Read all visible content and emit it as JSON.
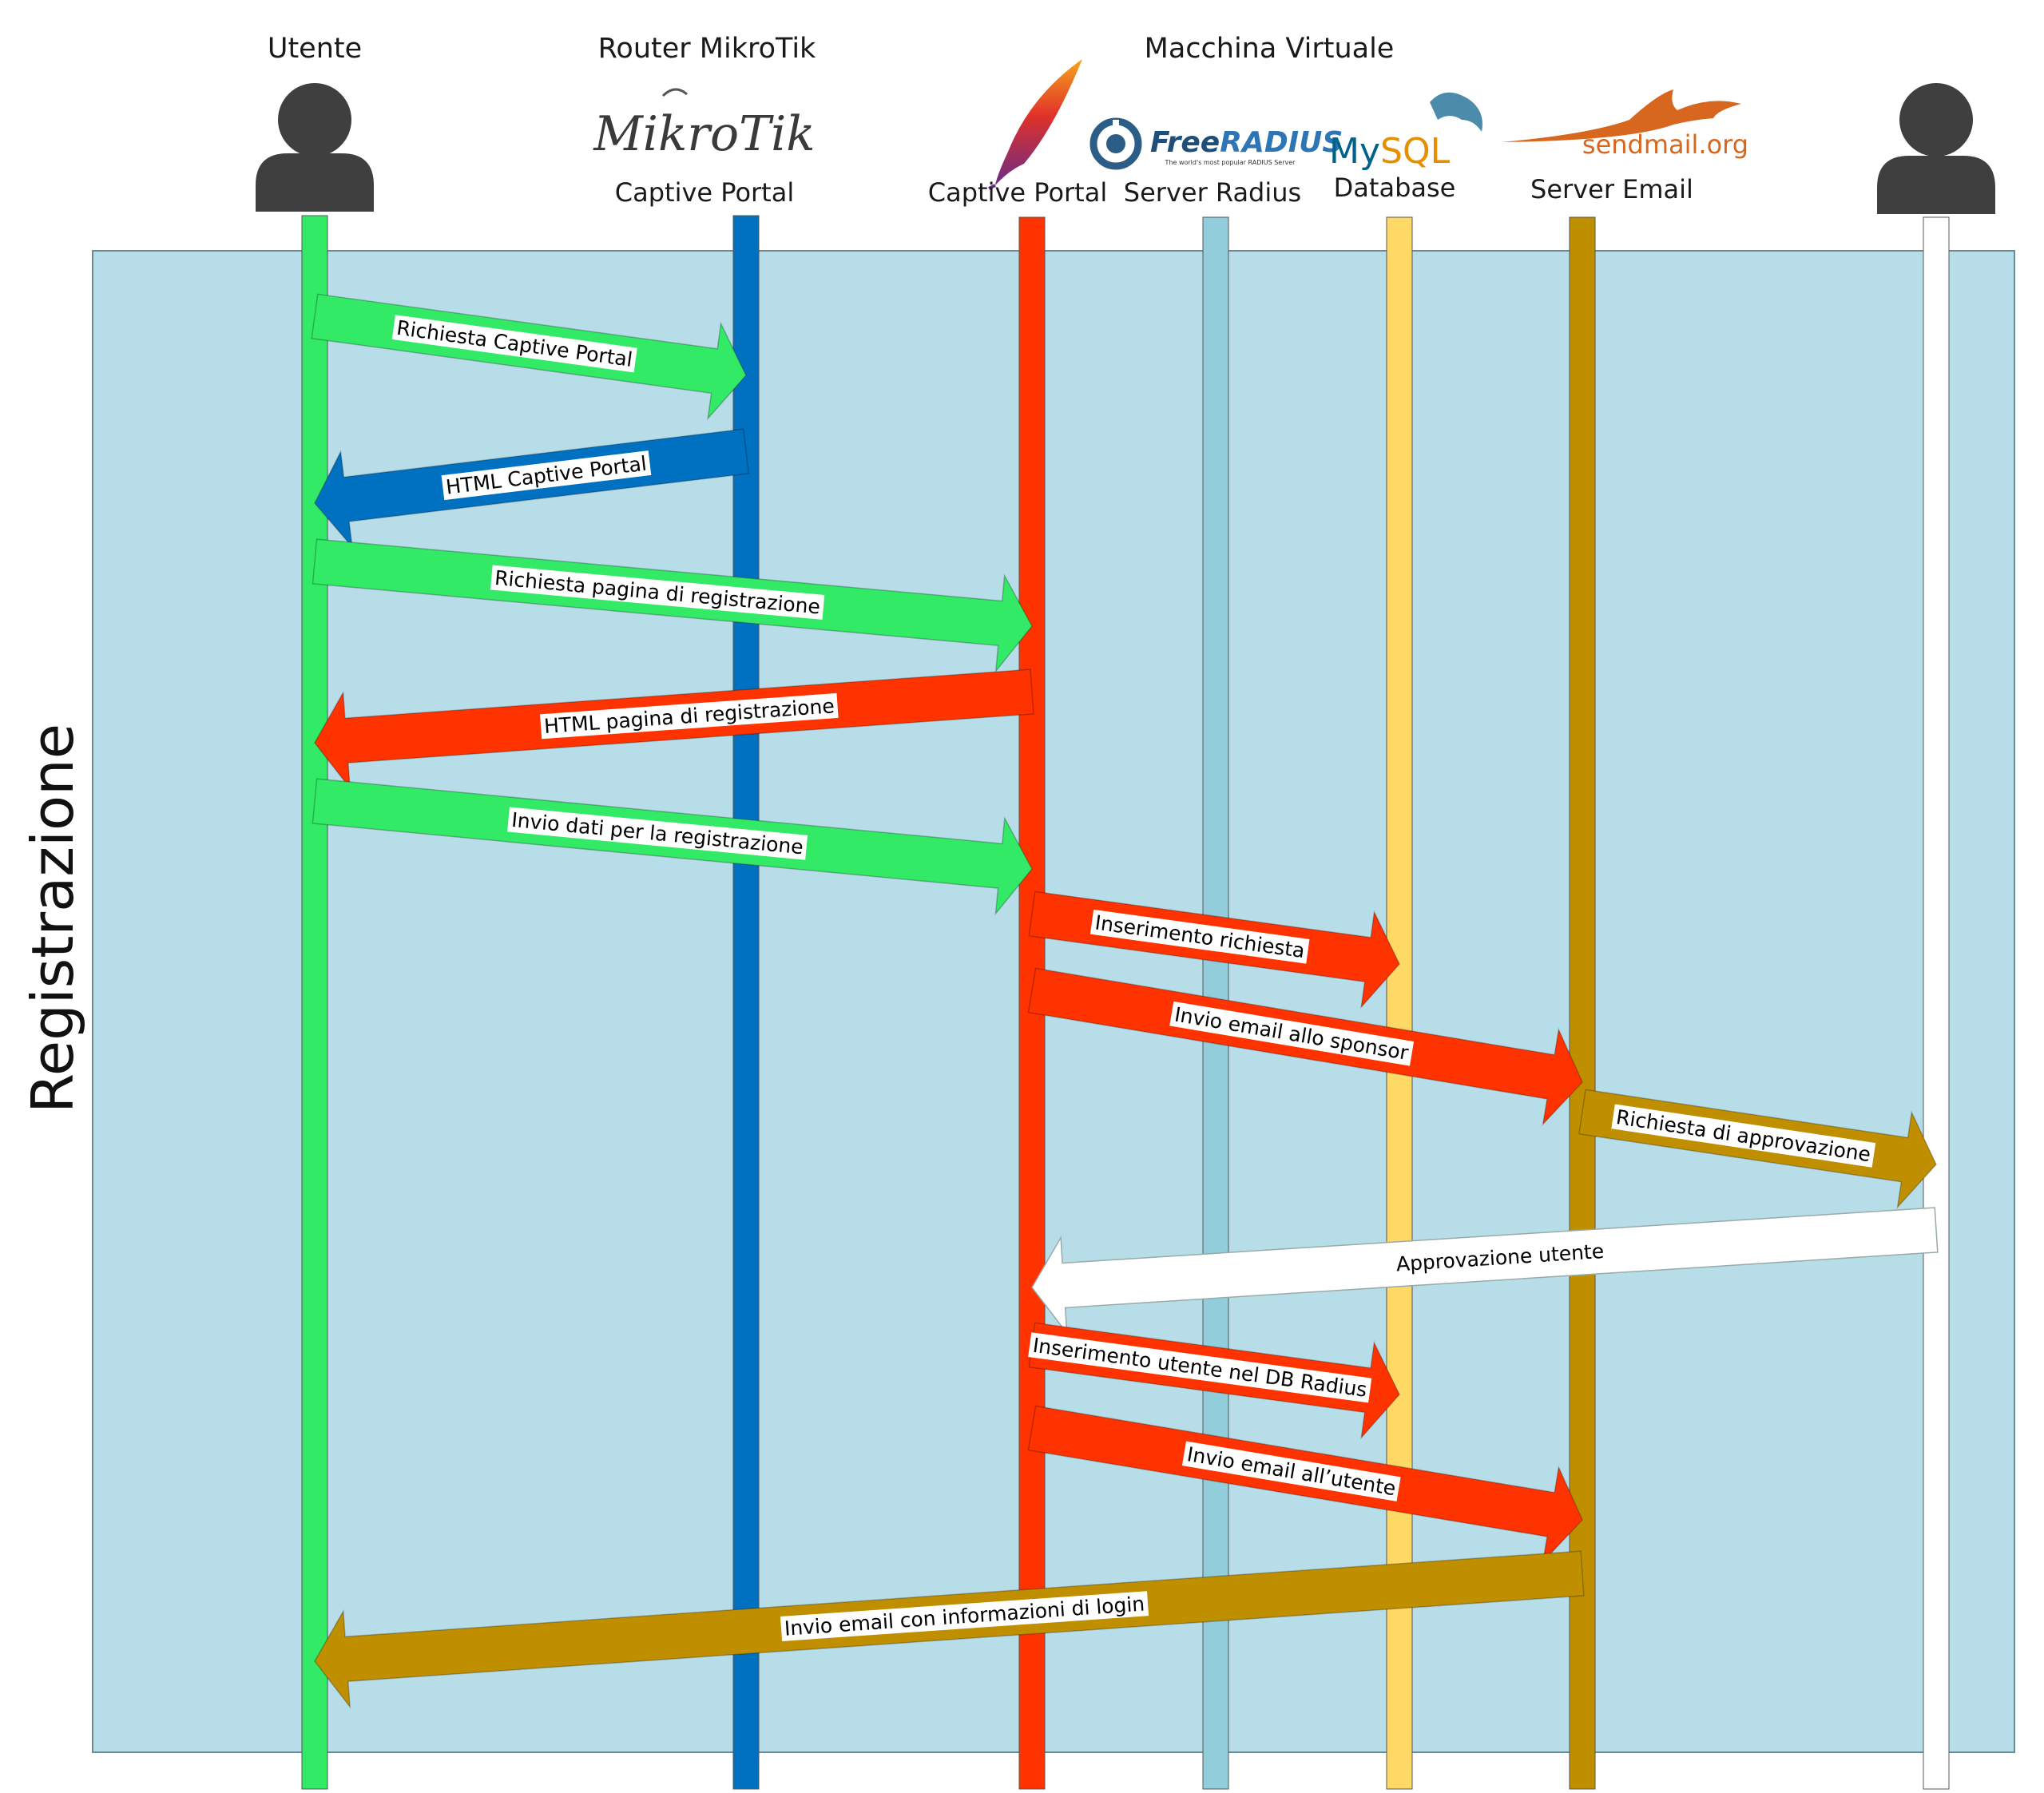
{
  "title_group": "Macchina Virtuale",
  "phase_label": "Registrazione",
  "actors": {
    "utente": {
      "name": "Utente",
      "color": "#33EA66"
    },
    "router": {
      "name": "Router MikroTik",
      "logo": "MikroTik",
      "label": "Captive Portal",
      "color": "#0070C0"
    },
    "apache": {
      "label": "Captive Portal",
      "icon": "apache-feather-icon",
      "color": "#FF3300"
    },
    "radius": {
      "logo_main": "Free",
      "logo_accent": "RADIUS",
      "logo_tagline": "The world's most popular RADIUS Server",
      "label": "Server Radius",
      "color": "#92CDDC"
    },
    "mysql": {
      "logo_a": "My",
      "logo_b": "SQL",
      "label": "Database",
      "color": "#FFD966"
    },
    "sendmail": {
      "logo": "sendmail.org",
      "label": "Server Email",
      "color": "#BF8F00"
    },
    "sponsor": {
      "color": "#FFFFFF",
      "icon": "person-icon"
    }
  },
  "background_color": "#B7DDE8",
  "messages": [
    {
      "id": "m1",
      "text": "Richiesta Captive Portal",
      "from": "utente",
      "to": "router",
      "color": "#33EA66"
    },
    {
      "id": "m2",
      "text": "HTML Captive Portal",
      "from": "router",
      "to": "utente",
      "color": "#0070C0"
    },
    {
      "id": "m3",
      "text": "Richiesta pagina di registrazione",
      "from": "utente",
      "to": "apache",
      "color": "#33EA66"
    },
    {
      "id": "m4",
      "text": "HTML pagina di registrazione",
      "from": "apache",
      "to": "utente",
      "color": "#FF3300"
    },
    {
      "id": "m5",
      "text": "Invio dati per la registrazione",
      "from": "utente",
      "to": "apache",
      "color": "#33EA66"
    },
    {
      "id": "m6",
      "text": "Inserimento richiesta",
      "from": "apache",
      "to": "mysql",
      "color": "#FF3300"
    },
    {
      "id": "m7",
      "text": "Invio email allo sponsor",
      "from": "apache",
      "to": "sendmail",
      "color": "#FF3300"
    },
    {
      "id": "m8",
      "text": "Richiesta di approvazione",
      "from": "sendmail",
      "to": "sponsor",
      "color": "#BF8F00"
    },
    {
      "id": "m9",
      "text": "Approvazione utente",
      "from": "sponsor",
      "to": "apache",
      "color": "#FFFFFF"
    },
    {
      "id": "m10",
      "text": "Inserimento utente nel DB Radius",
      "from": "apache",
      "to": "mysql",
      "color": "#FF3300"
    },
    {
      "id": "m11",
      "text": "Invio email all’utente",
      "from": "apache",
      "to": "sendmail",
      "color": "#FF3300"
    },
    {
      "id": "m12",
      "text": "Invio email con informazioni di login",
      "from": "sendmail",
      "to": "utente",
      "color": "#BF8F00"
    }
  ]
}
